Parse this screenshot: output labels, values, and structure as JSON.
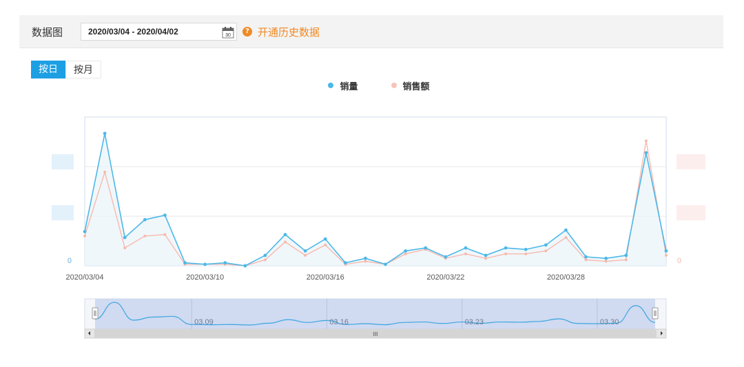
{
  "header": {
    "label": "数据图",
    "date_range": "2020/03/04 - 2020/04/02",
    "calendar_day": "30",
    "help_glyph": "?",
    "history_link": "开通历史数据"
  },
  "tabs": [
    {
      "label": "按日",
      "active": true
    },
    {
      "label": "按月",
      "active": false
    }
  ],
  "colors": {
    "sales_volume": "#4bb8e8",
    "sales_amount": "#f7b9ad",
    "accent": "#1d9fe3",
    "link": "#f08a24"
  },
  "chart_data": {
    "type": "line",
    "x": [
      "2020/03/04",
      "2020/03/05",
      "2020/03/06",
      "2020/03/07",
      "2020/03/08",
      "2020/03/09",
      "2020/03/10",
      "2020/03/11",
      "2020/03/12",
      "2020/03/13",
      "2020/03/14",
      "2020/03/15",
      "2020/03/16",
      "2020/03/17",
      "2020/03/18",
      "2020/03/19",
      "2020/03/20",
      "2020/03/21",
      "2020/03/22",
      "2020/03/23",
      "2020/03/24",
      "2020/03/25",
      "2020/03/26",
      "2020/03/27",
      "2020/03/28",
      "2020/03/29",
      "2020/03/30",
      "2020/03/31",
      "2020/04/01",
      "2020/04/02"
    ],
    "x_tick_labels": [
      "2020/03/04",
      "2020/03/10",
      "2020/03/16",
      "2020/03/22",
      "2020/03/28"
    ],
    "left_axis_zero": "0",
    "right_axis_zero": "0",
    "ylim": [
      0,
      100
    ],
    "series": [
      {
        "name": "销量",
        "axis": "left",
        "values": [
          23,
          89,
          19,
          31,
          34,
          2,
          1,
          2,
          0,
          7,
          21,
          10,
          18,
          2,
          5,
          1,
          10,
          12,
          6,
          12,
          7,
          12,
          11,
          14,
          24,
          6,
          5,
          7,
          76,
          10
        ]
      },
      {
        "name": "销售额",
        "axis": "right",
        "values": [
          20,
          63,
          12,
          20,
          21,
          1,
          1,
          1,
          0,
          4,
          16,
          7,
          14,
          1,
          3,
          1,
          8,
          11,
          5,
          8,
          5,
          8,
          8,
          10,
          19,
          4,
          3,
          4,
          84,
          7
        ]
      }
    ],
    "navigator_labels": [
      "03.09",
      "03.16",
      "03.23",
      "03.30"
    ],
    "scrollbar_glyph": "III"
  }
}
